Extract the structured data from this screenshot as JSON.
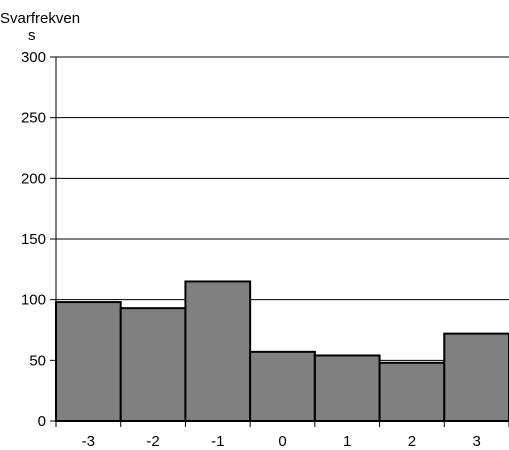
{
  "chart_data": {
    "type": "bar",
    "categories": [
      "-3",
      "-2",
      "-1",
      "0",
      "1",
      "2",
      "3"
    ],
    "values": [
      98,
      93,
      115,
      57,
      54,
      48,
      72
    ],
    "ylabel_lines": [
      "Svarfrekven",
      "s"
    ],
    "xlabel": "",
    "title": "",
    "ylim": [
      0,
      300
    ],
    "yticks": [
      0,
      50,
      100,
      150,
      200,
      250,
      300
    ],
    "grid": true,
    "bar_color": "#808080",
    "edge_color": "#000000"
  }
}
